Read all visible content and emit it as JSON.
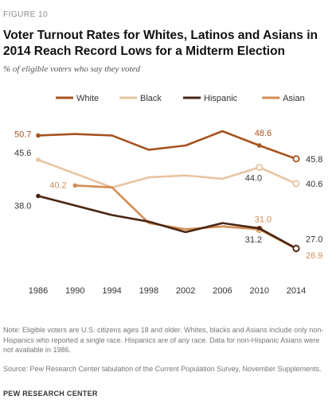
{
  "figure_label": "FIGURE 10",
  "title": "Voter Turnout Rates for Whites, Latinos and Asians in 2014 Reach Record Lows for a Midterm Election",
  "subtitle": "% of eligible voters who say they voted",
  "note": "Note: Eligible voters are U.S. citizens ages 18 and older. Whites, blacks and Asians include only non-Hispanics who reported a single race. Hispanics are of any race. Data for non-Hispanic Asians were not available in 1986.",
  "source": "Source: Pew Research Center tabulation of the Current Population Survey, November Supplements.",
  "brand": "PEW RESEARCH CENTER",
  "chart_data": {
    "type": "line",
    "x": [
      "1986",
      "1990",
      "1994",
      "1998",
      "2002",
      "2006",
      "2010",
      "2014"
    ],
    "legend_position": "top",
    "grid": false,
    "series": [
      {
        "name": "White",
        "color": "#a7521e",
        "values": [
          50.7,
          51.0,
          50.7,
          47.7,
          48.6,
          51.6,
          48.6,
          45.8
        ],
        "labels": [
          {
            "x": "1986",
            "text": "50.7"
          },
          {
            "x": "2010",
            "text": "48.6"
          },
          {
            "x": "2014",
            "text": "45.8"
          }
        ],
        "label_color": "#a7521e",
        "end_label_color": "#333333"
      },
      {
        "name": "Black",
        "color": "#e8c4a0",
        "values": [
          45.6,
          null,
          39.8,
          41.9,
          42.3,
          41.6,
          44.0,
          40.6
        ],
        "labels": [
          {
            "x": "1986",
            "text": "45.6"
          },
          {
            "x": "2010",
            "text": "44.0"
          },
          {
            "x": "2014",
            "text": "40.6"
          }
        ],
        "label_color": "#333333",
        "end_label_color": "#333333"
      },
      {
        "name": "Hispanic",
        "color": "#4a2512",
        "values": [
          38.0,
          null,
          34.0,
          32.6,
          30.4,
          32.3,
          31.2,
          27.0
        ],
        "labels": [
          {
            "x": "1986",
            "text": "38.0"
          },
          {
            "x": "2010",
            "text": "31.2"
          },
          {
            "x": "2014",
            "text": "27.0"
          }
        ],
        "label_color": "#333333",
        "end_label_color": "#333333"
      },
      {
        "name": "Asian",
        "color": "#d38d52",
        "values": [
          null,
          40.2,
          39.8,
          32.3,
          31.0,
          31.6,
          31.0,
          26.9
        ],
        "labels": [
          {
            "x": "1990",
            "text": "40.2"
          },
          {
            "x": "2010",
            "text": "31.0"
          },
          {
            "x": "2014",
            "text": "26.9"
          }
        ],
        "label_color": "#d38d52",
        "end_label_color": "#d38d52"
      }
    ]
  }
}
